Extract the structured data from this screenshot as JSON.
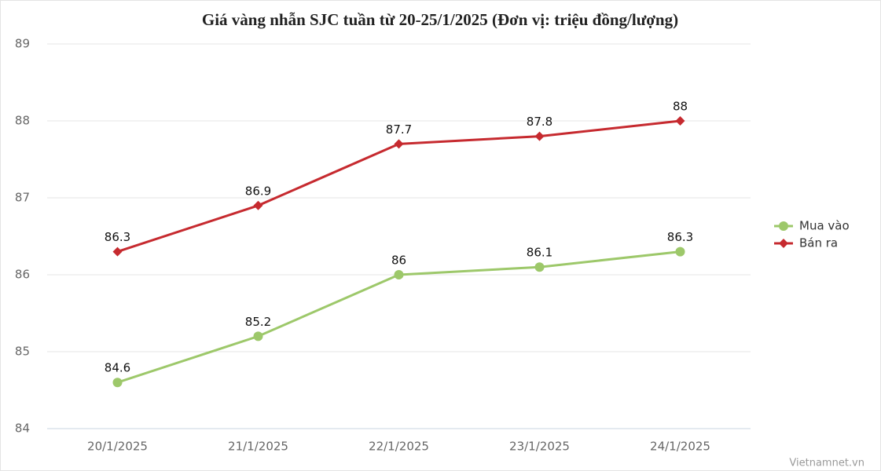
{
  "chart_data": {
    "type": "line",
    "title": "Giá vàng nhẫn SJC tuần từ 20-25/1/2025 (Đơn vị: triệu đồng/lượng)",
    "categories": [
      "20/1/2025",
      "21/1/2025",
      "22/1/2025",
      "23/1/2025",
      "24/1/2025"
    ],
    "series": [
      {
        "name": "Mua vào",
        "color": "#9dc86a",
        "marker": "circle",
        "values": [
          84.6,
          85.2,
          86,
          86.1,
          86.3
        ]
      },
      {
        "name": "Bán ra",
        "color": "#c62a2f",
        "marker": "diamond",
        "values": [
          86.3,
          86.9,
          87.7,
          87.8,
          88
        ]
      }
    ],
    "ylim": [
      84,
      89
    ],
    "yticks": [
      84,
      85,
      86,
      87,
      88,
      89
    ],
    "grid": true,
    "legend": "right",
    "credit": "Vietnamnet.vn"
  }
}
